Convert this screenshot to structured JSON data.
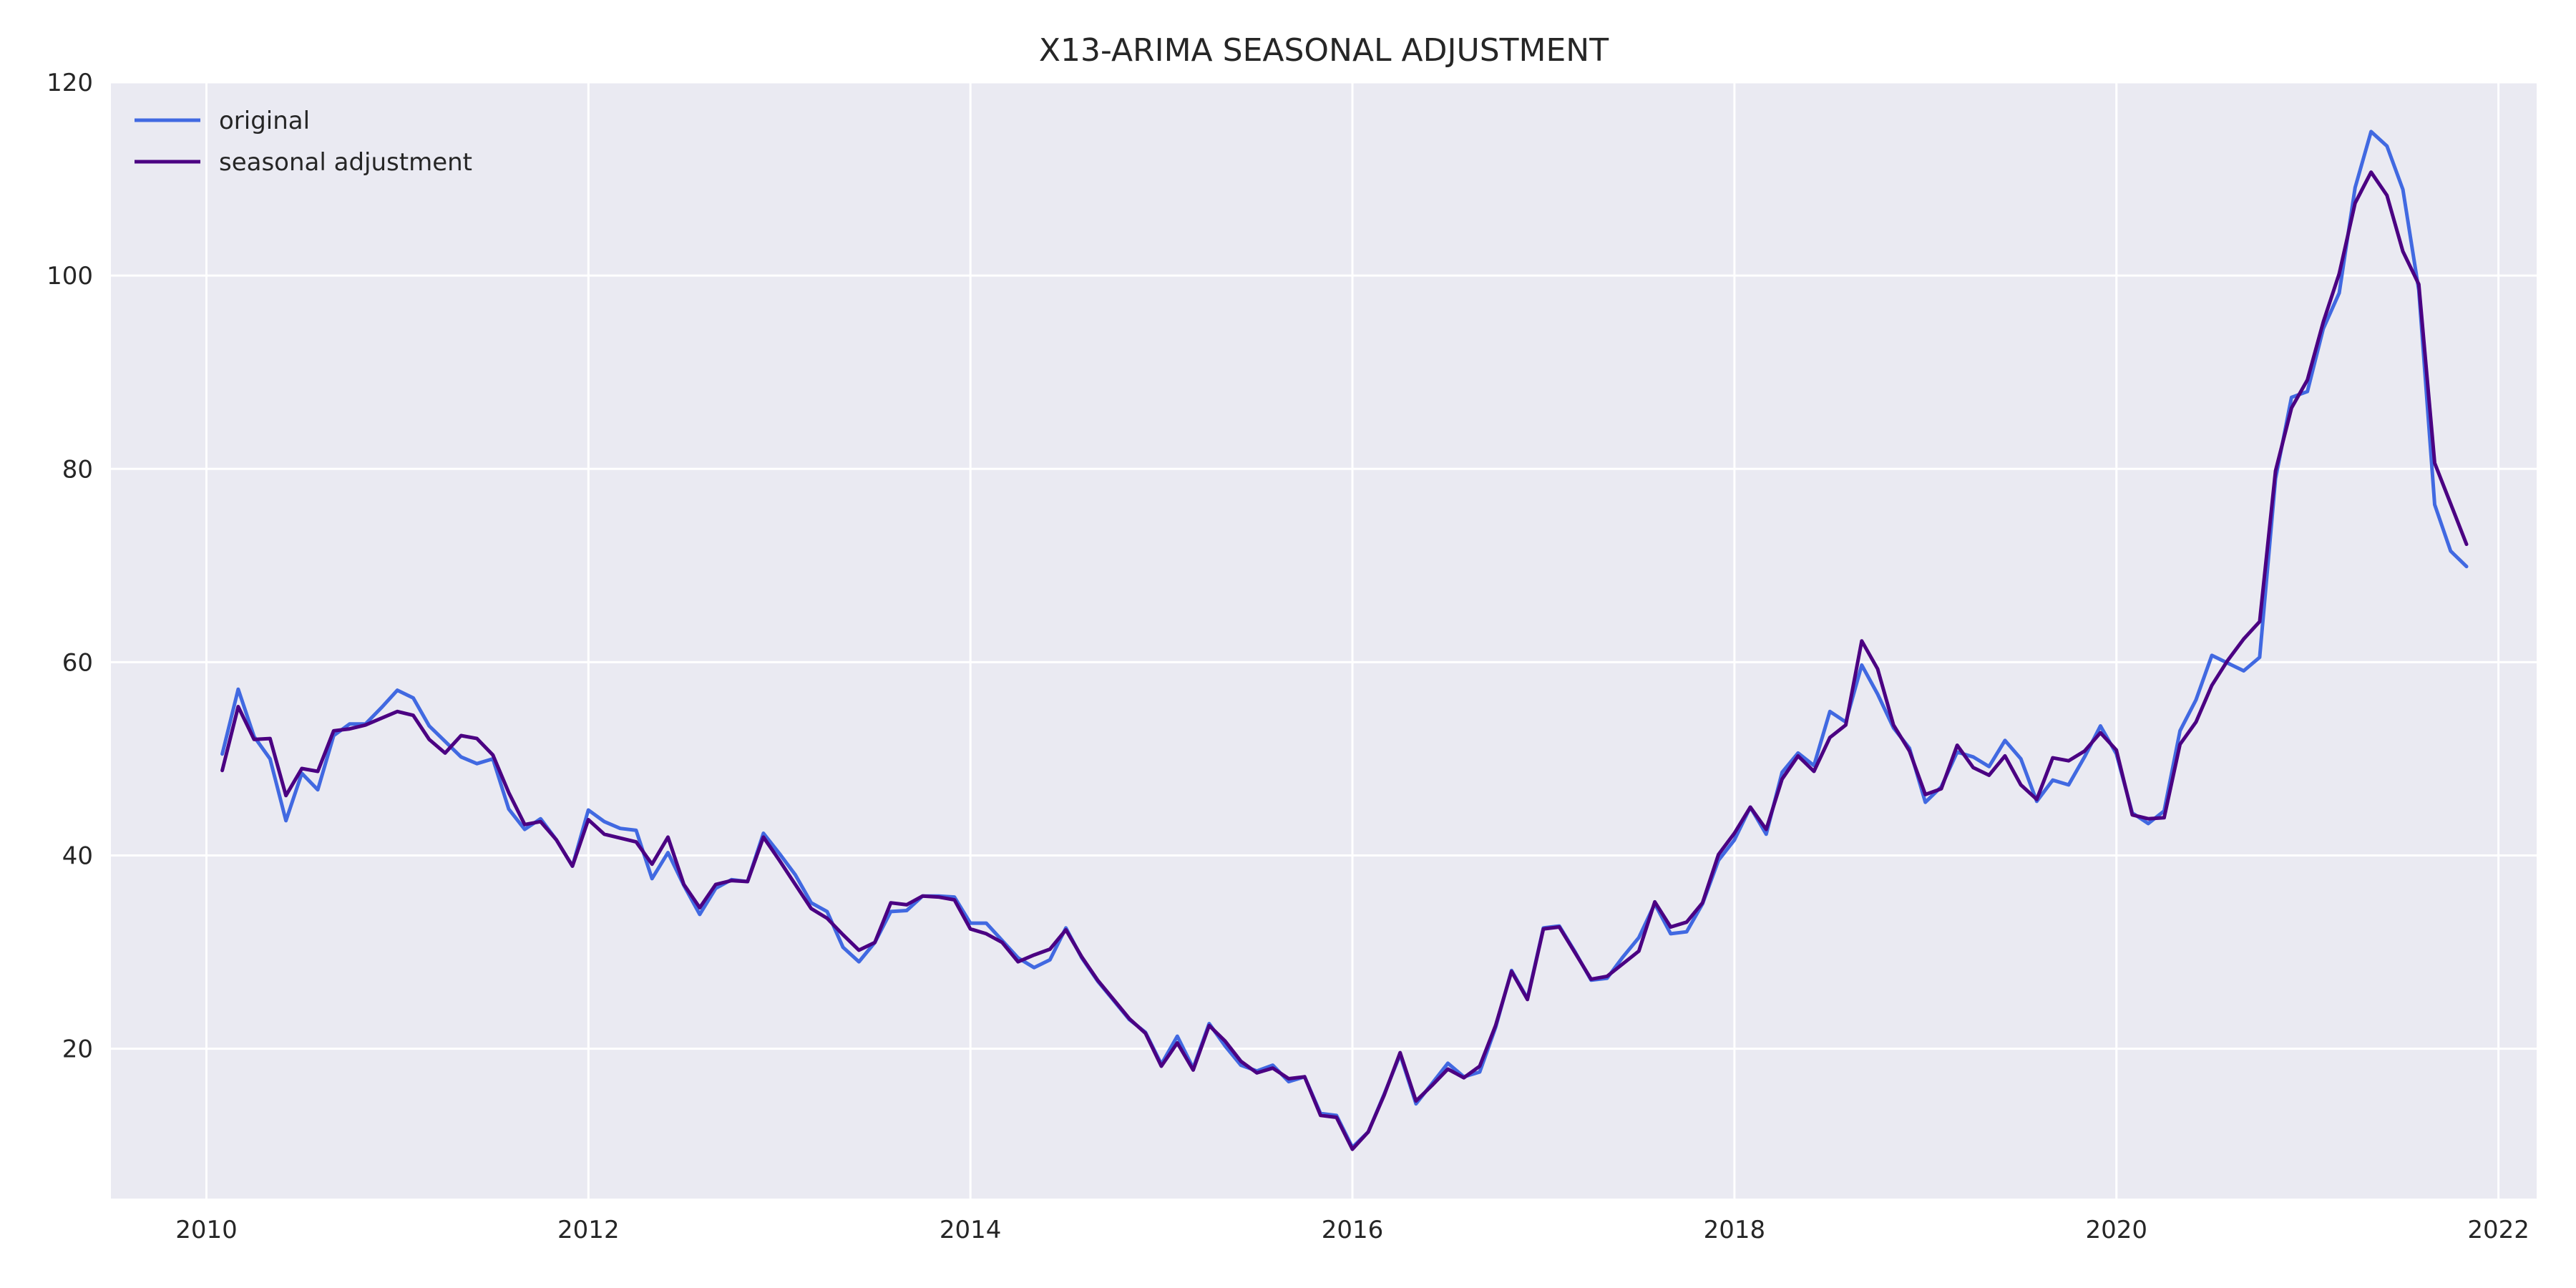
{
  "chart_data": {
    "type": "line",
    "title": "X13-ARIMA SEASONAL ADJUSTMENT",
    "xlabel": "",
    "ylabel": "",
    "xlim": [
      2009.5,
      2022.2
    ],
    "ylim": [
      4.5,
      120
    ],
    "x_ticks": [
      "2010",
      "2012",
      "2014",
      "2016",
      "2018",
      "2020",
      "2022"
    ],
    "y_ticks": [
      "20",
      "40",
      "60",
      "80",
      "100",
      "120"
    ],
    "grid": true,
    "legend_placement": "top-left",
    "background_color": "#eaeaf2",
    "grid_color": "#ffffff",
    "x_start": 2010.083,
    "x_step_months": 1,
    "series": [
      {
        "name": "original",
        "color": "#4169e1",
        "values": [
          50.5,
          57.2,
          52.3,
          50,
          43.6,
          48.5,
          46.8,
          52.4,
          53.6,
          53.6,
          55.3,
          57.1,
          56.3,
          53.4,
          51.8,
          50.2,
          49.5,
          50,
          44.8,
          42.7,
          43.8,
          41.6,
          38.9,
          44.7,
          43.5,
          42.8,
          42.6,
          37.6,
          40.3,
          36.9,
          33.9,
          36.6,
          37.5,
          37.3,
          42.3,
          40.2,
          38,
          35.1,
          34.2,
          30.5,
          29,
          31,
          34.2,
          34.3,
          35.8,
          35.8,
          35.7,
          33,
          33,
          31.2,
          29.4,
          28.4,
          29.2,
          32.5,
          29.4,
          27,
          25,
          23,
          21.7,
          18.4,
          21.3,
          18,
          22.6,
          20.3,
          18.3,
          17.7,
          18.3,
          16.6,
          17.1,
          13.3,
          13.1,
          9.8,
          11.4,
          15.3,
          19.4,
          14.3,
          16.4,
          18.5,
          17.1,
          17.6,
          22.2,
          28.1,
          25.2,
          32.5,
          32.7,
          30,
          27.1,
          27.3,
          29.5,
          31.5,
          35,
          31.9,
          32.1,
          35,
          39.5,
          41.6,
          45,
          42.2,
          48.6,
          50.6,
          49.3,
          54.9,
          53.8,
          59.7,
          56.7,
          53.2,
          51.1,
          45.5,
          47.1,
          50.7,
          50.2,
          49.2,
          51.9,
          50,
          45.6,
          47.8,
          47.3,
          50.2,
          53.4,
          50.5,
          44.4,
          43.3,
          44.6,
          52.9,
          56.1,
          60.7,
          59.9,
          59.1,
          60.5,
          79,
          87.4,
          88,
          94.5,
          98.2,
          109.1,
          114.9,
          113.4,
          108.9,
          98.5,
          76.3,
          71.5,
          69.9
        ]
      },
      {
        "name": "seasonal adjustment",
        "color": "#4b0082",
        "values": [
          48.8,
          55.4,
          52,
          52.1,
          46.2,
          49,
          48.7,
          52.9,
          53.1,
          53.5,
          54.2,
          54.9,
          54.5,
          52,
          50.6,
          52.4,
          52.1,
          50.4,
          46.5,
          43.2,
          43.5,
          41.6,
          38.9,
          43.7,
          42.2,
          41.8,
          41.4,
          39.1,
          41.9,
          37,
          34.6,
          37,
          37.4,
          37.3,
          41.9,
          39.5,
          37,
          34.5,
          33.5,
          31.8,
          30.2,
          31,
          35.1,
          34.9,
          35.8,
          35.7,
          35.4,
          32.4,
          31.9,
          31,
          29,
          29.7,
          30.3,
          32.3,
          29.5,
          27.1,
          25.1,
          23.1,
          21.6,
          18.2,
          20.6,
          17.8,
          22.4,
          20.8,
          18.7,
          17.5,
          18,
          16.9,
          17.1,
          13.1,
          12.9,
          9.6,
          11.4,
          15.2,
          19.6,
          14.6,
          16.2,
          17.9,
          17,
          18.2,
          22.4,
          28,
          25.1,
          32.4,
          32.6,
          29.9,
          27.2,
          27.5,
          28.8,
          30.1,
          35.2,
          32.6,
          33.1,
          35.1,
          40.1,
          42.3,
          45,
          42.7,
          47.9,
          50.3,
          48.7,
          52.2,
          53.5,
          62.2,
          59.3,
          53.5,
          50.8,
          46.3,
          46.9,
          51.4,
          49.1,
          48.3,
          50.3,
          47.3,
          45.8,
          50.1,
          49.8,
          50.8,
          52.7,
          50.9,
          44.2,
          43.8,
          43.9,
          51.5,
          53.8,
          57.6,
          60.2,
          62.4,
          64.2,
          79.8,
          86.3,
          89.2,
          95.2,
          100.2,
          107.5,
          110.7,
          108.3,
          102.5,
          99.1,
          80.6,
          76.4,
          72.2
        ]
      }
    ]
  }
}
